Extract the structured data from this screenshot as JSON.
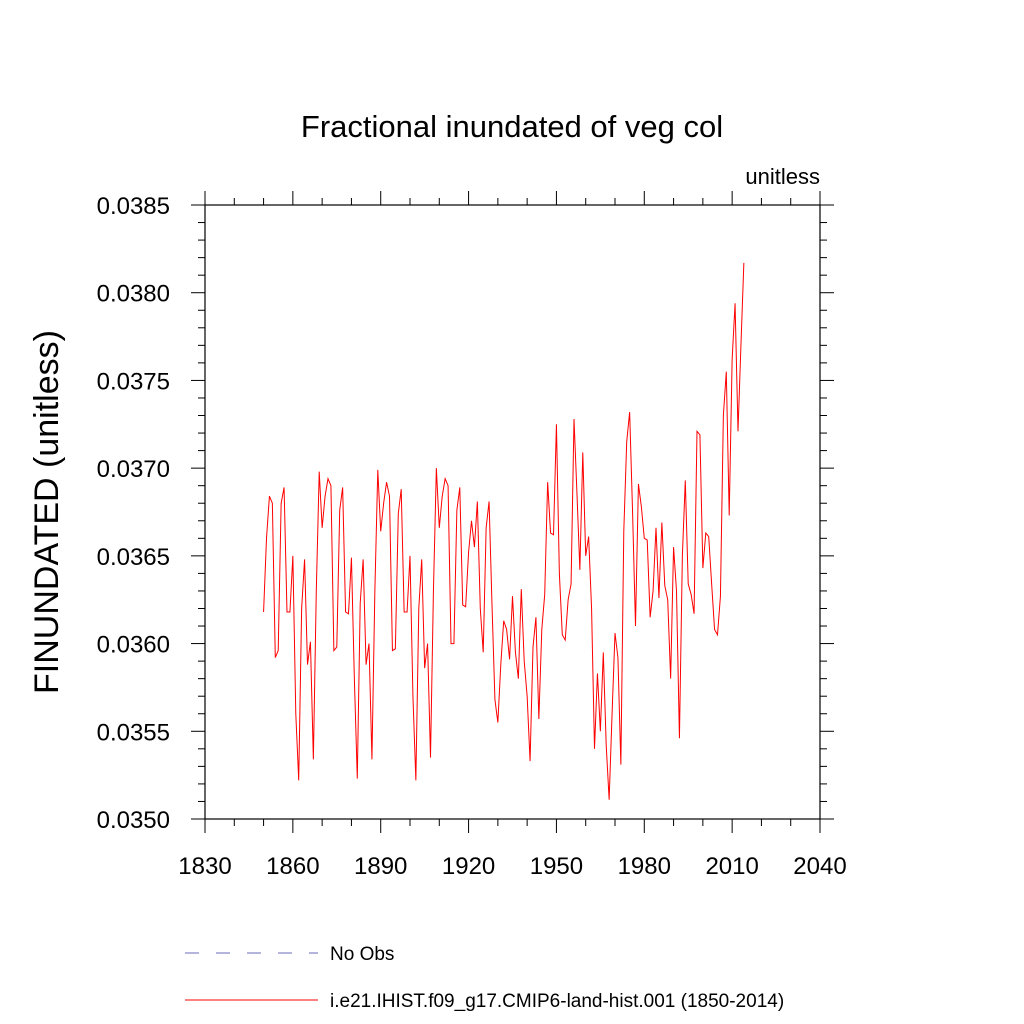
{
  "chart_data": {
    "type": "line",
    "title": "Fractional inundated of veg col",
    "units_label": "unitless",
    "ylabel": "FINUNDATED  (unitless)",
    "xlabel": "",
    "xlim": [
      1830,
      2040
    ],
    "ylim": [
      0.035,
      0.0385
    ],
    "xticks": [
      1830,
      1860,
      1890,
      1920,
      1950,
      1980,
      2010,
      2040
    ],
    "xtick_labels": [
      "1830",
      "1860",
      "1890",
      "1920",
      "1950",
      "1980",
      "2010",
      "2040"
    ],
    "yticks": [
      0.035,
      0.0355,
      0.036,
      0.0365,
      0.037,
      0.0375,
      0.038,
      0.0385
    ],
    "ytick_labels": [
      "0.0350",
      "0.0355",
      "0.0360",
      "0.0365",
      "0.0370",
      "0.0375",
      "0.0380",
      "0.0385"
    ],
    "grid": false,
    "legend_position": "bottom",
    "series": [
      {
        "name": "No Obs",
        "color": "#6a6ab8",
        "style": "dashed",
        "x": [],
        "y": []
      },
      {
        "name": "i.e21.IHIST.f09_g17.CMIP6-land-hist.001 (1850-2014)",
        "color": "#ff0000",
        "style": "solid",
        "x": [
          1850,
          1851,
          1852,
          1853,
          1854,
          1855,
          1856,
          1857,
          1858,
          1859,
          1860,
          1861,
          1862,
          1863,
          1864,
          1865,
          1866,
          1867,
          1868,
          1869,
          1870,
          1871,
          1872,
          1873,
          1874,
          1875,
          1876,
          1877,
          1878,
          1879,
          1880,
          1881,
          1882,
          1883,
          1884,
          1885,
          1886,
          1887,
          1888,
          1889,
          1890,
          1891,
          1892,
          1893,
          1894,
          1895,
          1896,
          1897,
          1898,
          1899,
          1900,
          1901,
          1902,
          1903,
          1904,
          1905,
          1906,
          1907,
          1908,
          1909,
          1910,
          1911,
          1912,
          1913,
          1914,
          1915,
          1916,
          1917,
          1918,
          1919,
          1920,
          1921,
          1922,
          1923,
          1924,
          1925,
          1926,
          1927,
          1928,
          1929,
          1930,
          1931,
          1932,
          1933,
          1934,
          1935,
          1936,
          1937,
          1938,
          1939,
          1940,
          1941,
          1942,
          1943,
          1944,
          1945,
          1946,
          1947,
          1948,
          1949,
          1950,
          1951,
          1952,
          1953,
          1954,
          1955,
          1956,
          1957,
          1958,
          1959,
          1960,
          1961,
          1962,
          1963,
          1964,
          1965,
          1966,
          1967,
          1968,
          1969,
          1970,
          1971,
          1972,
          1973,
          1974,
          1975,
          1976,
          1977,
          1978,
          1979,
          1980,
          1981,
          1982,
          1983,
          1984,
          1985,
          1986,
          1987,
          1988,
          1989,
          1990,
          1991,
          1992,
          1993,
          1994,
          1995,
          1996,
          1997,
          1998,
          1999,
          2000,
          2001,
          2002,
          2003,
          2004,
          2005,
          2006,
          2007,
          2008,
          2009,
          2010,
          2011,
          2012,
          2013,
          2014
        ],
        "y": [
          0.03618,
          0.0366,
          0.03684,
          0.0368,
          0.03592,
          0.03596,
          0.0368,
          0.03689,
          0.03618,
          0.03618,
          0.0365,
          0.0356,
          0.03522,
          0.0362,
          0.03648,
          0.03588,
          0.03601,
          0.03534,
          0.0363,
          0.03698,
          0.03666,
          0.03684,
          0.03694,
          0.0369,
          0.03596,
          0.03598,
          0.03676,
          0.03689,
          0.03618,
          0.03617,
          0.03649,
          0.0358,
          0.03523,
          0.03623,
          0.03648,
          0.03588,
          0.036,
          0.03534,
          0.0363,
          0.03699,
          0.03664,
          0.0368,
          0.03692,
          0.03684,
          0.03596,
          0.03597,
          0.03674,
          0.03688,
          0.03618,
          0.03618,
          0.0365,
          0.0357,
          0.03522,
          0.0362,
          0.03648,
          0.03586,
          0.036,
          0.03535,
          0.0363,
          0.037,
          0.03666,
          0.03684,
          0.03694,
          0.0369,
          0.036,
          0.036,
          0.03676,
          0.03689,
          0.03622,
          0.03621,
          0.03652,
          0.0367,
          0.03655,
          0.03681,
          0.0362,
          0.03595,
          0.03666,
          0.03681,
          0.03622,
          0.03568,
          0.03555,
          0.03588,
          0.03613,
          0.03608,
          0.03591,
          0.03627,
          0.03595,
          0.0358,
          0.03631,
          0.0359,
          0.0357,
          0.03533,
          0.03598,
          0.03615,
          0.03557,
          0.03608,
          0.03628,
          0.03692,
          0.03663,
          0.03662,
          0.03725,
          0.0364,
          0.03605,
          0.03602,
          0.03625,
          0.03634,
          0.03728,
          0.03686,
          0.03642,
          0.03709,
          0.0365,
          0.03661,
          0.0362,
          0.0354,
          0.03583,
          0.0355,
          0.03595,
          0.03542,
          0.03511,
          0.0356,
          0.03606,
          0.03592,
          0.03531,
          0.03664,
          0.03715,
          0.03732,
          0.03675,
          0.0361,
          0.03691,
          0.03678,
          0.0366,
          0.03659,
          0.03615,
          0.0363,
          0.03666,
          0.03626,
          0.03669,
          0.03633,
          0.03625,
          0.0358,
          0.03655,
          0.0363,
          0.03546,
          0.0365,
          0.03693,
          0.03634,
          0.03628,
          0.03617,
          0.03721,
          0.03719,
          0.03643,
          0.03663,
          0.03661,
          0.03634,
          0.03608,
          0.03605,
          0.03627,
          0.0373,
          0.03755,
          0.03673,
          0.03762,
          0.03794,
          0.03721,
          0.0377,
          0.03817
        ]
      }
    ]
  }
}
